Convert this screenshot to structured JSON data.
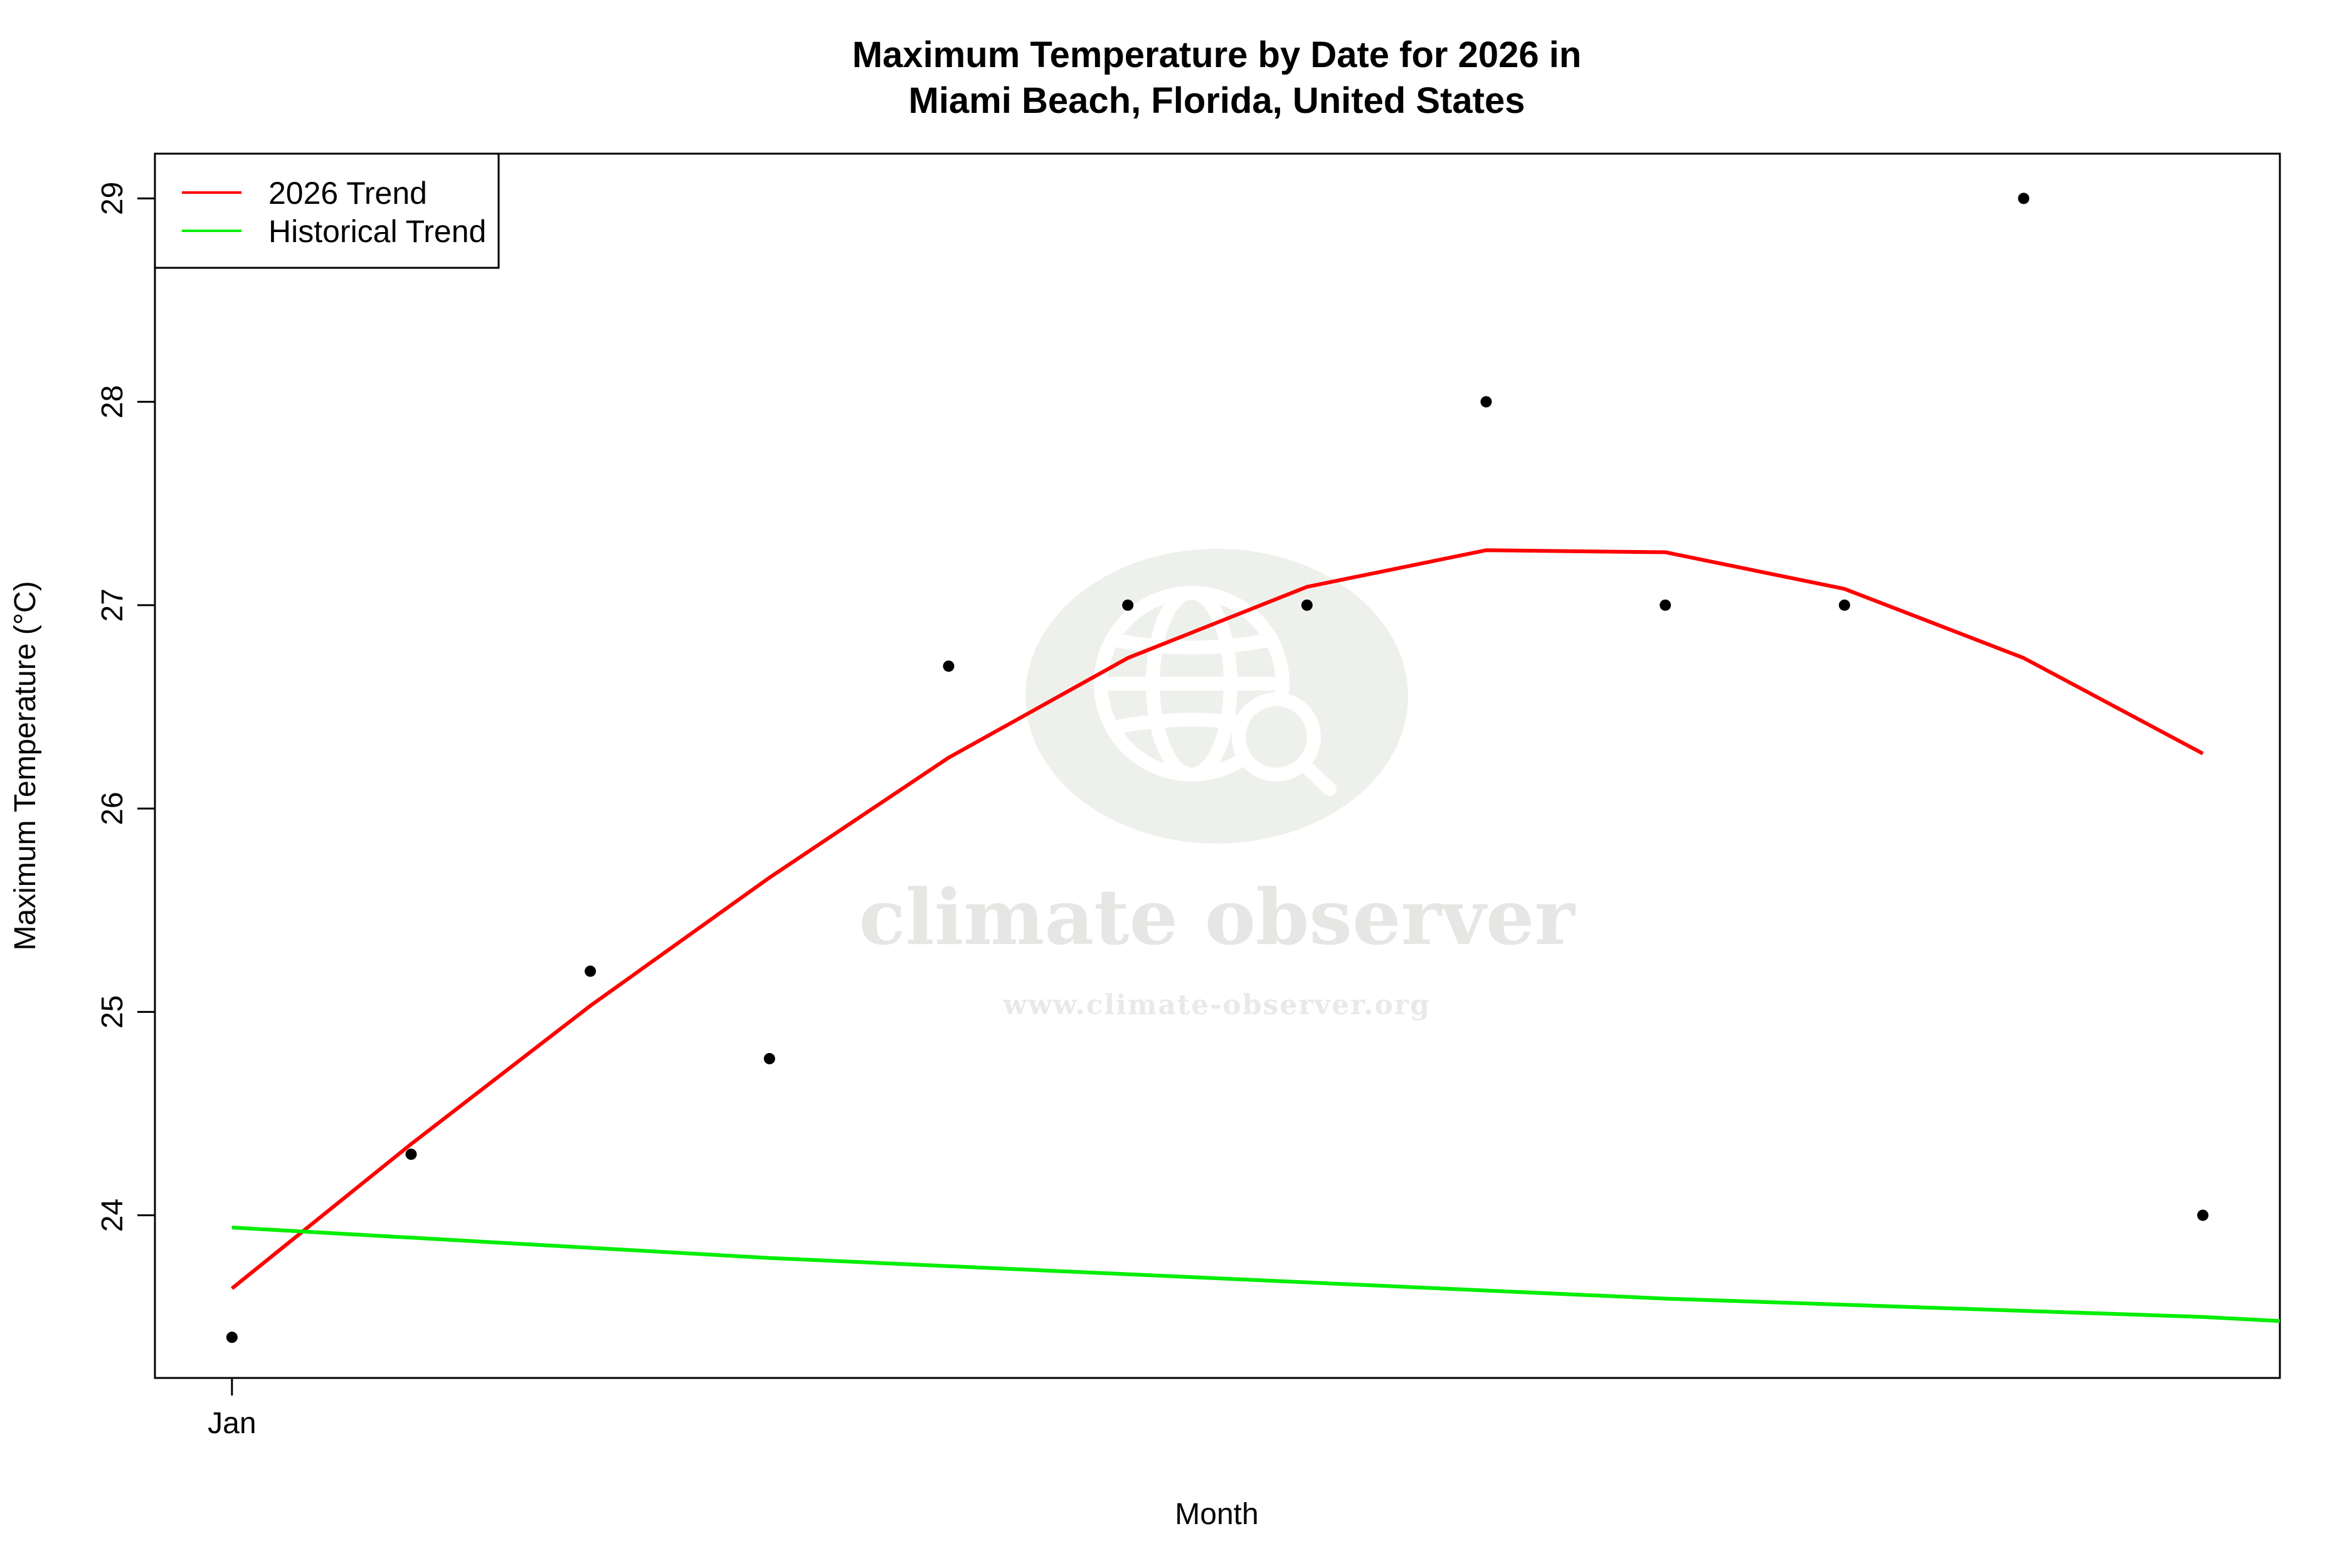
{
  "chart_data": {
    "type": "line",
    "title_line1": "Maximum Temperature by Date for 2026 in",
    "title_line2": "Miami Beach, Florida, United States",
    "xlabel": "Month",
    "ylabel": "Maximum Temperature (°C)",
    "x_tick_labels": [
      "Jan"
    ],
    "y_ticks": [
      24,
      25,
      26,
      27,
      28,
      29
    ],
    "ylim": [
      23.2,
      29.22
    ],
    "xlim": [
      0.57,
      12.43
    ],
    "x": [
      1,
      2,
      3,
      4,
      5,
      6,
      7,
      8,
      9,
      10,
      11,
      12
    ],
    "observed": [
      23.4,
      24.3,
      25.2,
      24.77,
      26.7,
      27.0,
      27.0,
      28.0,
      27.0,
      27.0,
      29.0,
      24.0
    ],
    "series": [
      {
        "name": "2026 Trend",
        "color": "#ff0000",
        "x": [
          1,
          2,
          3,
          4,
          5,
          6,
          7,
          8,
          9,
          10,
          11,
          12
        ],
        "values": [
          23.64,
          24.35,
          25.03,
          25.66,
          26.25,
          26.74,
          27.09,
          27.27,
          27.26,
          27.08,
          26.74,
          26.27
        ]
      },
      {
        "name": "Historical Trend",
        "color": "#00ee00",
        "x": [
          1,
          2,
          3,
          4,
          5,
          6,
          7,
          8,
          9,
          10,
          11,
          12,
          12.43
        ],
        "values": [
          23.94,
          23.89,
          23.84,
          23.79,
          23.75,
          23.71,
          23.67,
          23.63,
          23.59,
          23.56,
          23.53,
          23.5,
          23.48
        ]
      }
    ],
    "legend": {
      "position": "top-left",
      "entries": [
        {
          "label": "2026 Trend",
          "color": "#ff0000"
        },
        {
          "label": "Historical Trend",
          "color": "#00ee00"
        }
      ]
    },
    "point_color": "#000000",
    "grid": false
  },
  "watermark": {
    "name": "climate observer",
    "url": "www.climate-observer.org",
    "icon": "globe-search-icon"
  }
}
